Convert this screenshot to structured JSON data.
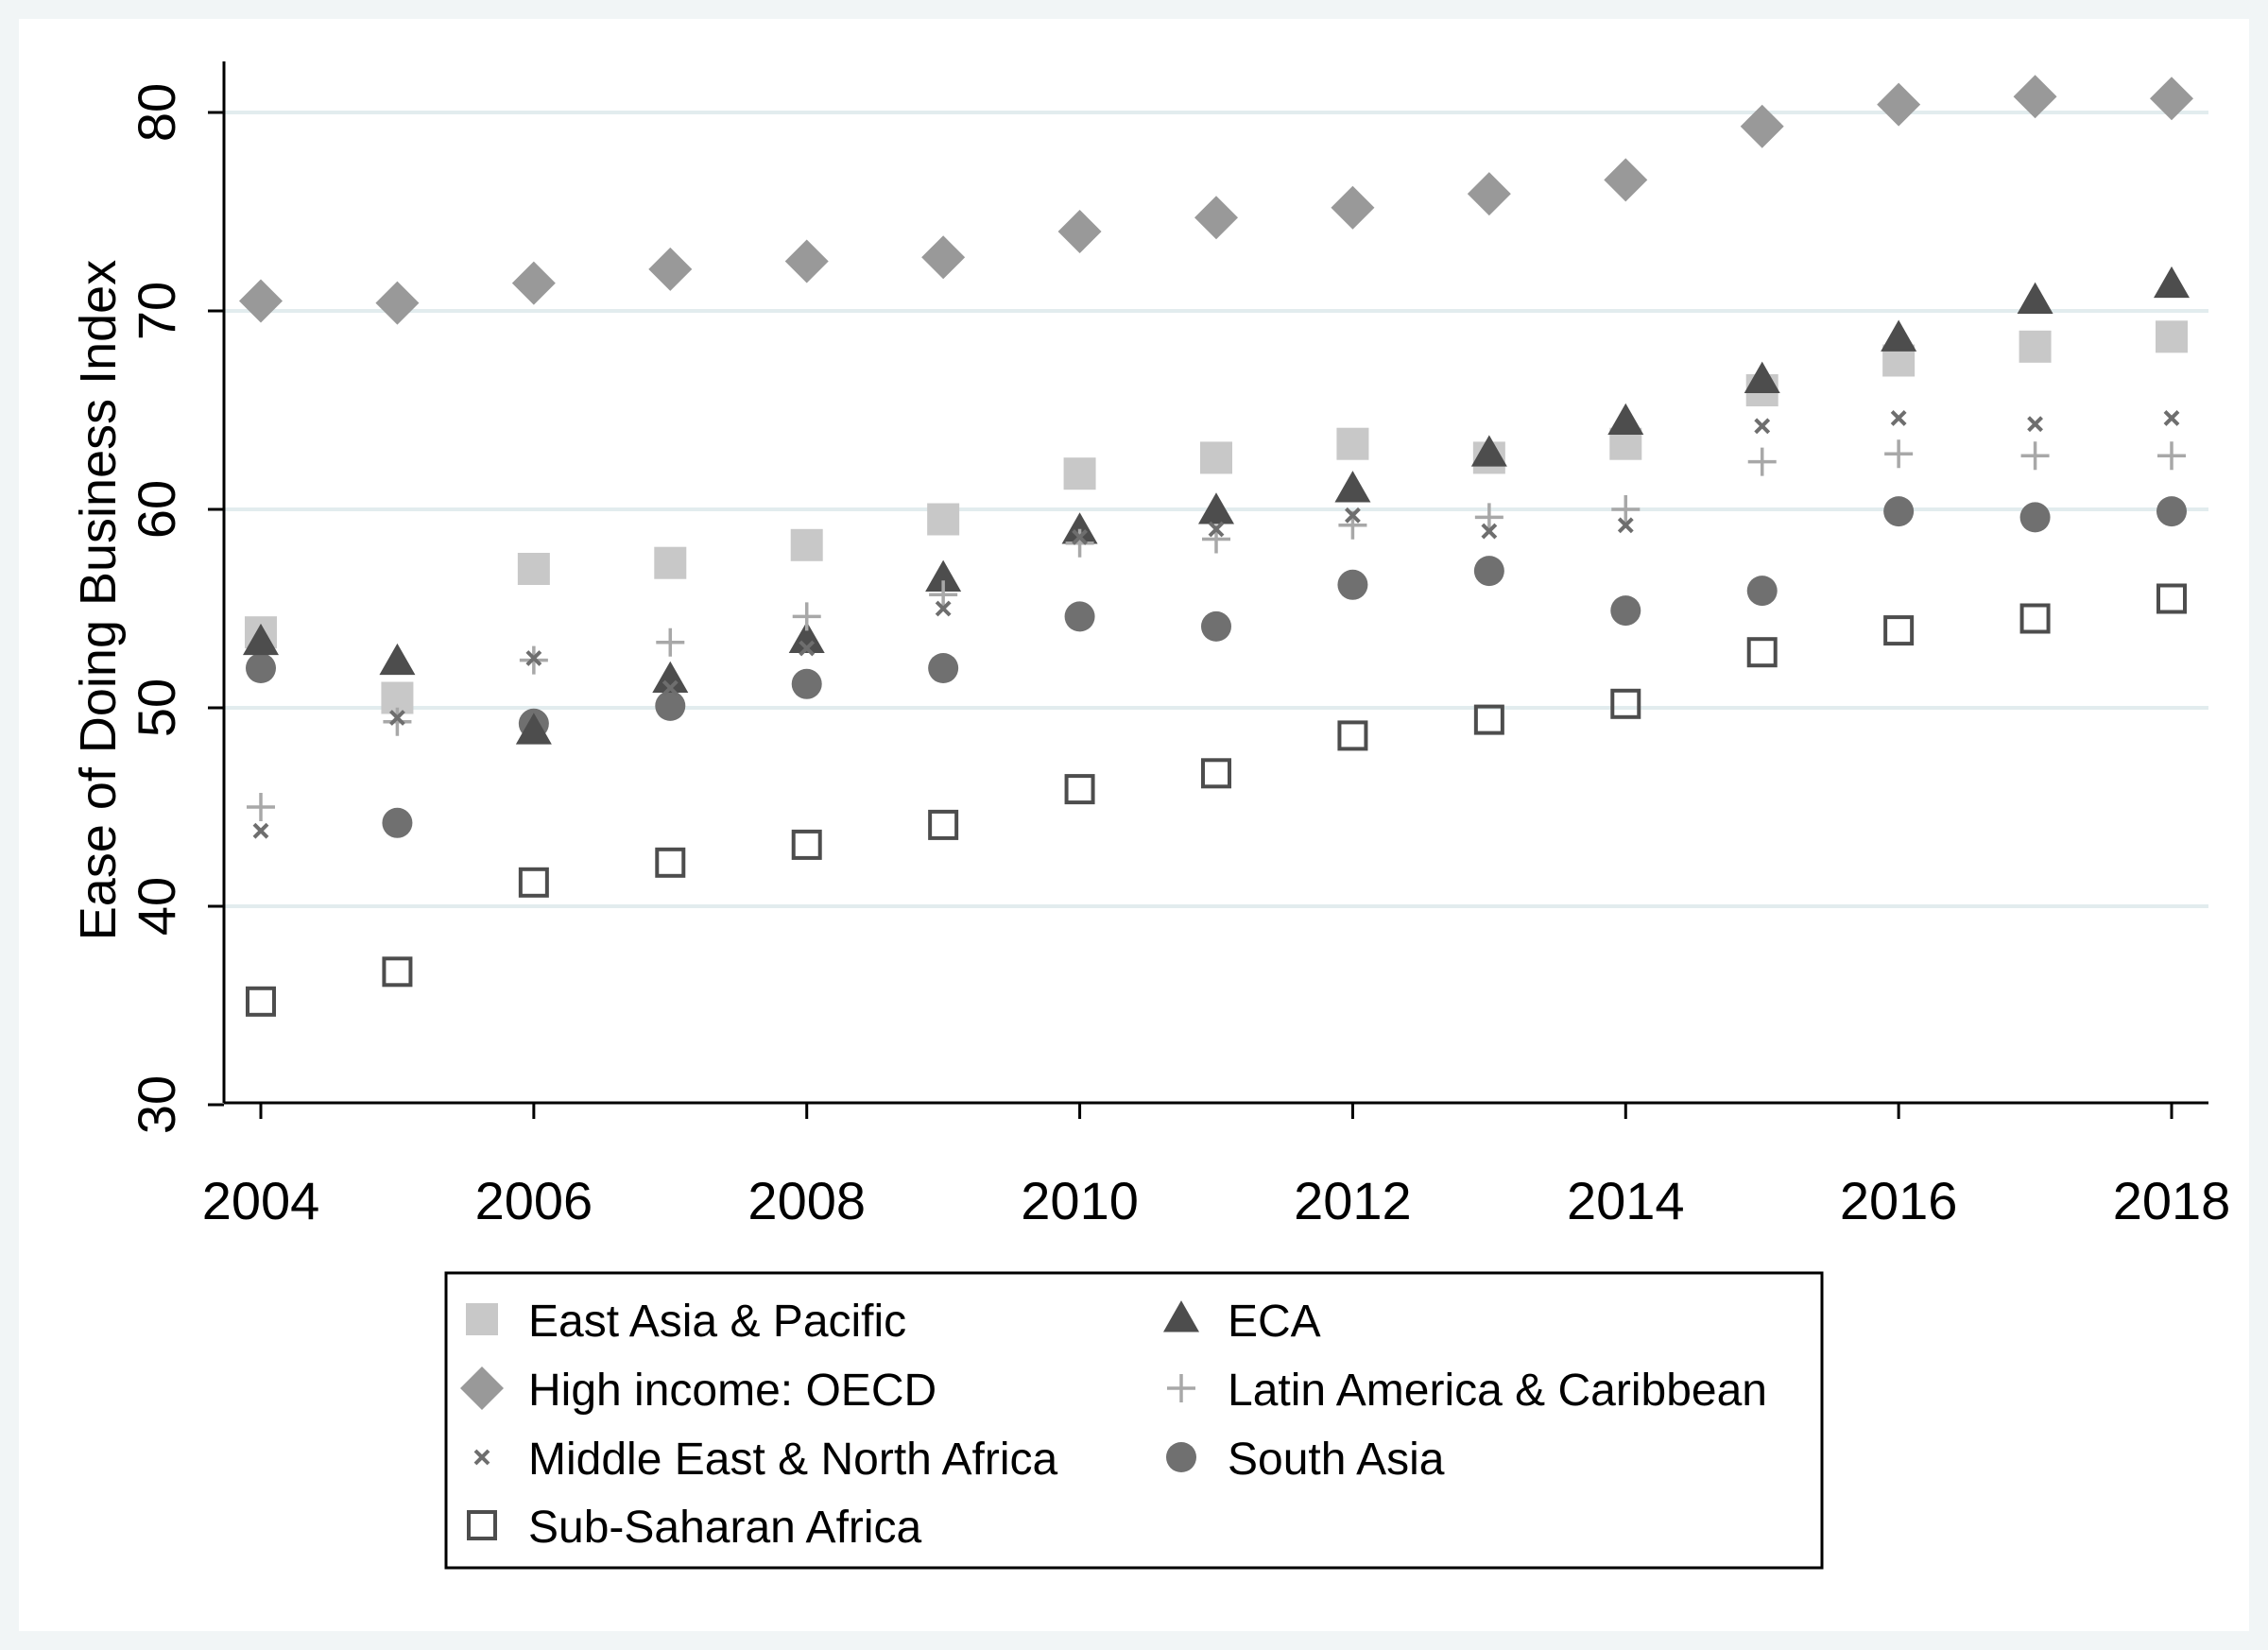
{
  "chart_data": {
    "type": "scatter",
    "title": "",
    "xlabel": "",
    "ylabel": "Ease of Doing Business Index",
    "xlim": [
      2004,
      2018
    ],
    "ylim": [
      30,
      83
    ],
    "x": [
      2004,
      2005,
      2006,
      2007,
      2008,
      2009,
      2010,
      2011,
      2012,
      2013,
      2014,
      2015,
      2016,
      2017,
      2018
    ],
    "x_ticks": [
      2004,
      2006,
      2008,
      2010,
      2012,
      2014,
      2016,
      2018
    ],
    "y_ticks": [
      30,
      40,
      50,
      60,
      70,
      80
    ],
    "grid": "horizontal",
    "legend_placement": "bottom",
    "series": [
      {
        "name": "East Asia & Pacific",
        "marker": "square",
        "color": "#c8c8c8",
        "values": [
          53.8,
          50.5,
          57.0,
          57.3,
          58.2,
          59.5,
          61.8,
          62.6,
          63.3,
          62.6,
          63.3,
          66.0,
          67.5,
          68.2,
          68.7
        ]
      },
      {
        "name": "ECA",
        "marker": "triangle",
        "color": "#4d4d4d",
        "values": [
          53.3,
          52.3,
          48.8,
          51.4,
          53.4,
          56.5,
          58.9,
          59.9,
          61.0,
          62.8,
          64.4,
          66.5,
          68.6,
          70.5,
          71.3
        ]
      },
      {
        "name": "High income: OECD",
        "marker": "diamond",
        "color": "#999999",
        "values": [
          70.5,
          70.4,
          71.4,
          72.1,
          72.5,
          72.7,
          74.0,
          74.7,
          75.2,
          75.9,
          76.6,
          79.3,
          80.4,
          80.8,
          80.7
        ]
      },
      {
        "name": "Latin America & Caribbean",
        "marker": "plus",
        "color": "#a8a8a8",
        "values": [
          45.0,
          49.3,
          52.4,
          53.3,
          54.6,
          55.7,
          58.3,
          58.5,
          59.2,
          59.6,
          60.0,
          62.4,
          62.8,
          62.7,
          62.7
        ]
      },
      {
        "name": "Middle East & North Africa",
        "marker": "x",
        "color": "#6e6e6e",
        "values": [
          43.8,
          49.5,
          52.5,
          51.0,
          53.0,
          55.0,
          58.6,
          59.0,
          59.7,
          58.9,
          59.2,
          64.2,
          64.6,
          64.3,
          64.6
        ]
      },
      {
        "name": "South Asia",
        "marker": "circle",
        "color": "#707070",
        "values": [
          52.0,
          44.2,
          49.2,
          50.1,
          51.2,
          52.0,
          54.6,
          54.1,
          56.2,
          56.9,
          54.9,
          55.9,
          59.9,
          59.6,
          59.9
        ]
      },
      {
        "name": "Sub-Saharan Africa",
        "marker": "hollow-square",
        "color": "#4d4d4d",
        "values": [
          35.2,
          36.7,
          41.2,
          42.2,
          43.1,
          44.1,
          45.9,
          46.7,
          48.6,
          49.4,
          50.2,
          52.8,
          53.9,
          54.5,
          55.5
        ]
      }
    ],
    "legend_order": [
      0,
      1,
      2,
      3,
      4,
      5,
      6
    ]
  }
}
